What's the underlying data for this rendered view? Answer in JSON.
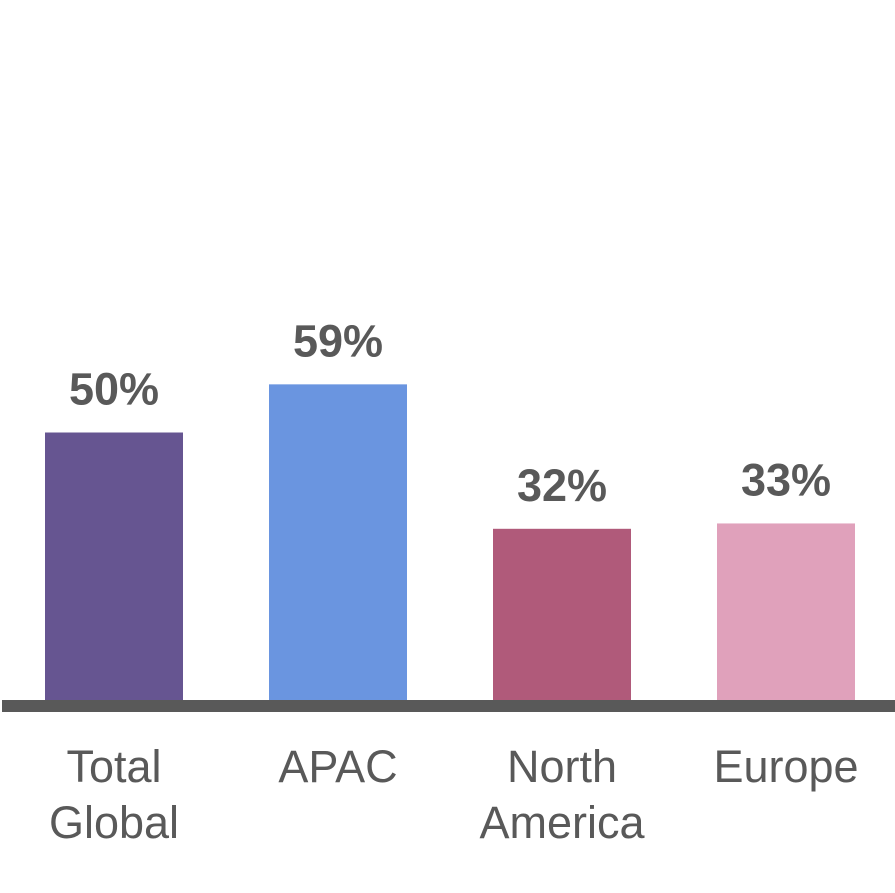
{
  "chart_data": {
    "type": "bar",
    "categories": [
      [
        "Total",
        "Global"
      ],
      [
        "APAC"
      ],
      [
        "North",
        "America"
      ],
      [
        "Europe"
      ]
    ],
    "values": [
      50,
      59,
      32,
      33
    ],
    "value_labels": [
      "50%",
      "59%",
      "32%",
      "33%"
    ],
    "colors": [
      "#665591",
      "#6a95e0",
      "#b05a7a",
      "#e0a1bb"
    ],
    "axis_color": "#595959",
    "text_color": "#595959",
    "title": "",
    "xlabel": "",
    "ylabel": "",
    "ylim": [
      0,
      100
    ],
    "grid": false,
    "legend": "none"
  }
}
